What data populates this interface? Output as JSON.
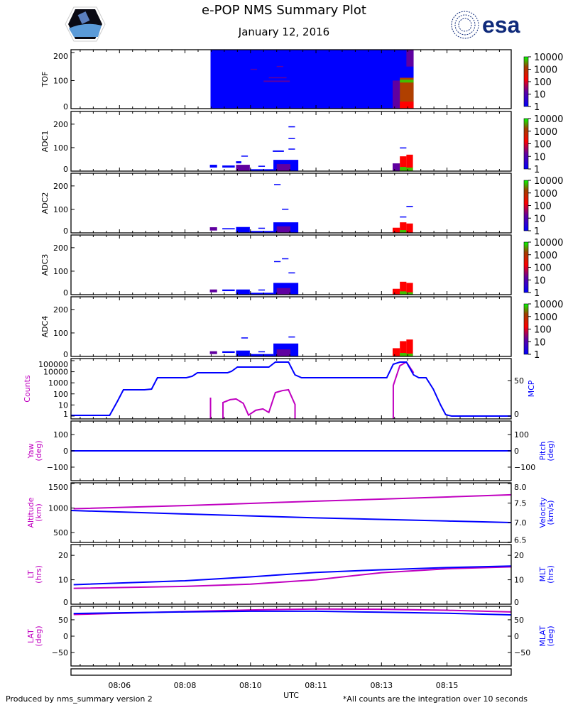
{
  "header": {
    "title": "e-POP NMS Summary Plot",
    "subtitle": "January 12, 2016",
    "left_logo": "CASSIOPE",
    "right_logo": "esa"
  },
  "footer": {
    "left": "Produced by nms_summary version 2",
    "right": "*All counts are the integration over 10 seconds"
  },
  "colors": {
    "magenta": "#c000c0",
    "blue": "#0000ff",
    "esa": "#0f2a7a"
  },
  "chart_data": {
    "type": "multi-panel",
    "title": "e-POP NMS Summary Plot",
    "xlabel": "UTC",
    "x_units": "seconds after 08:00:00",
    "xlim": [
      326,
      998
    ],
    "x_ticks": [
      {
        "t": 400,
        "label": "08:06"
      },
      {
        "t": 500,
        "label": "08:08"
      },
      {
        "t": 600,
        "label": "08:10"
      },
      {
        "t": 700,
        "label": "08:11"
      },
      {
        "t": 800,
        "label": "08:13"
      },
      {
        "t": 900,
        "label": "08:15"
      }
    ],
    "colorbar": {
      "labels": [
        "10000",
        "1000",
        "100",
        "10",
        "1"
      ]
    },
    "spectrograms": [
      {
        "name": "TOF",
        "ylim": [
          0,
          210
        ],
        "yticks": [
          "0",
          "100",
          "200"
        ],
        "ytick_values": [
          0,
          100,
          200
        ],
        "blocks": [
          [
            539,
            849,
            0,
            210,
            0
          ],
          [
            620,
            660,
            95,
            100,
            1
          ],
          [
            628,
            655,
            110,
            112,
            1
          ],
          [
            640,
            650,
            150,
            152,
            1
          ],
          [
            600,
            610,
            140,
            142,
            1
          ],
          [
            817,
            828,
            0,
            100,
            1
          ],
          [
            828,
            849,
            0,
            110,
            4
          ],
          [
            828,
            849,
            0,
            25,
            2
          ],
          [
            828,
            849,
            93,
            103,
            3
          ],
          [
            838,
            849,
            150,
            210,
            1
          ]
        ]
      },
      {
        "name": "ADC1",
        "ylim": [
          0,
          254
        ],
        "yticks": [
          "0",
          "100",
          "200"
        ],
        "ytick_values": [
          0,
          100,
          200
        ],
        "blocks": [
          [
            538,
            549,
            15,
            27,
            0
          ],
          [
            557,
            576,
            15,
            24,
            0
          ],
          [
            578,
            586,
            33,
            42,
            0
          ],
          [
            578,
            599,
            0,
            27,
            1
          ],
          [
            586,
            596,
            63,
            66,
            0
          ],
          [
            599,
            635,
            0,
            8,
            0
          ],
          [
            612,
            622,
            20,
            23,
            0
          ],
          [
            634,
            651,
            82,
            88,
            0
          ],
          [
            635,
            673,
            0,
            48,
            0
          ],
          [
            640,
            661,
            0,
            30,
            1
          ],
          [
            658,
            668,
            188,
            191,
            0
          ],
          [
            658,
            668,
            138,
            141,
            0
          ],
          [
            658,
            668,
            92,
            96,
            0
          ],
          [
            817,
            828,
            0,
            33,
            1
          ],
          [
            828,
            838,
            0,
            63,
            2
          ],
          [
            828,
            838,
            0,
            18,
            3
          ],
          [
            838,
            848,
            0,
            70,
            2
          ],
          [
            838,
            848,
            0,
            15,
            3
          ],
          [
            828,
            838,
            98,
            101,
            0
          ]
        ]
      },
      {
        "name": "ADC2",
        "ylim": [
          0,
          254
        ],
        "yticks": [
          "0",
          "100",
          "200"
        ],
        "ytick_values": [
          0,
          100,
          200
        ],
        "blocks": [
          [
            538,
            549,
            10,
            24,
            1
          ],
          [
            557,
            576,
            15,
            20,
            0
          ],
          [
            578,
            599,
            0,
            25,
            0
          ],
          [
            599,
            635,
            0,
            8,
            0
          ],
          [
            612,
            622,
            18,
            22,
            0
          ],
          [
            635,
            673,
            0,
            45,
            0
          ],
          [
            640,
            661,
            0,
            28,
            1
          ],
          [
            636,
            646,
            205,
            208,
            0
          ],
          [
            648,
            658,
            100,
            103,
            0
          ],
          [
            817,
            828,
            0,
            22,
            2
          ],
          [
            828,
            838,
            0,
            45,
            2
          ],
          [
            828,
            838,
            0,
            12,
            3
          ],
          [
            838,
            848,
            0,
            40,
            2
          ],
          [
            838,
            848,
            112,
            115,
            0
          ],
          [
            828,
            838,
            68,
            70,
            0
          ]
        ]
      },
      {
        "name": "ADC3",
        "ylim": [
          0,
          254
        ],
        "yticks": [
          "0",
          "100",
          "200"
        ],
        "ytick_values": [
          0,
          100,
          200
        ],
        "blocks": [
          [
            538,
            549,
            10,
            22,
            1
          ],
          [
            557,
            576,
            15,
            22,
            0
          ],
          [
            578,
            599,
            0,
            22,
            0
          ],
          [
            599,
            635,
            0,
            8,
            0
          ],
          [
            612,
            622,
            18,
            22,
            0
          ],
          [
            635,
            673,
            0,
            50,
            0
          ],
          [
            640,
            661,
            0,
            28,
            1
          ],
          [
            636,
            646,
            140,
            143,
            0
          ],
          [
            648,
            658,
            152,
            155,
            0
          ],
          [
            658,
            668,
            92,
            95,
            0
          ],
          [
            817,
            828,
            0,
            25,
            2
          ],
          [
            828,
            838,
            0,
            55,
            2
          ],
          [
            828,
            838,
            0,
            14,
            3
          ],
          [
            838,
            848,
            0,
            50,
            2
          ],
          [
            838,
            848,
            0,
            10,
            3
          ]
        ]
      },
      {
        "name": "ADC4",
        "ylim": [
          0,
          254
        ],
        "yticks": [
          "0",
          "100",
          "200"
        ],
        "ytick_values": [
          0,
          100,
          200
        ],
        "blocks": [
          [
            538,
            549,
            10,
            22,
            1
          ],
          [
            557,
            576,
            15,
            22,
            0
          ],
          [
            578,
            599,
            0,
            25,
            0
          ],
          [
            586,
            596,
            78,
            81,
            0
          ],
          [
            599,
            635,
            0,
            10,
            0
          ],
          [
            612,
            622,
            18,
            22,
            0
          ],
          [
            635,
            673,
            0,
            55,
            0
          ],
          [
            640,
            661,
            0,
            30,
            1
          ],
          [
            658,
            668,
            82,
            85,
            0
          ],
          [
            817,
            828,
            0,
            35,
            2
          ],
          [
            828,
            838,
            0,
            65,
            2
          ],
          [
            828,
            838,
            0,
            15,
            3
          ],
          [
            838,
            848,
            0,
            72,
            2
          ],
          [
            838,
            848,
            0,
            12,
            3
          ]
        ]
      }
    ],
    "counts_panel": {
      "left": {
        "name": "Counts",
        "scale": "log",
        "ylim": [
          0.55,
          155000
        ],
        "yticks": [
          "1",
          "10",
          "100",
          "1000",
          "10000",
          "100000"
        ],
        "ytick_values": [
          1,
          10,
          100,
          1000,
          10000,
          100000
        ],
        "segments": [
          [
            [
              539,
              46
            ],
            [
              539,
              0.4
            ]
          ],
          [
            [
              558,
              0.4
            ],
            [
              558,
              16.5
            ],
            [
              569,
              30
            ],
            [
              578,
              35
            ],
            [
              589,
              14
            ],
            [
              597,
              1.2
            ],
            [
              608,
              3.3
            ],
            [
              619,
              4.4
            ],
            [
              628,
              2.1
            ],
            [
              638,
              130
            ],
            [
              649,
              200
            ],
            [
              658,
              235
            ],
            [
              668,
              11
            ],
            [
              668,
              0.4
            ]
          ],
          [
            [
              818,
              0.4
            ],
            [
              818,
              570
            ],
            [
              828,
              35000
            ],
            [
              838,
              75000
            ],
            [
              849,
              8000
            ]
          ]
        ]
      },
      "right": {
        "name": "MCP",
        "scale": "linear",
        "ylim": [
          -4,
          81
        ],
        "yticks": [
          "0",
          "50"
        ],
        "ytick_values": [
          0,
          50
        ],
        "t": [
          326,
          385,
          397,
          406,
          438,
          449,
          458,
          502,
          511,
          519,
          565,
          571,
          580,
          628,
          638,
          658,
          668,
          678,
          808,
          818,
          828,
          838,
          849,
          857,
          868,
          879,
          890,
          898,
          907,
          998
        ],
        "values": [
          1,
          1,
          21,
          37,
          37,
          38,
          54,
          54,
          56,
          61,
          61,
          63,
          69,
          69,
          76,
          76,
          58,
          54,
          54,
          73,
          76,
          76,
          58,
          54,
          54,
          38,
          16,
          2,
          0,
          0
        ]
      }
    },
    "line_panels": [
      {
        "left": {
          "name": "Yaw",
          "unit": "(deg)",
          "ylim": [
            -183,
            183
          ],
          "yticks": [
            "−100",
            "0",
            "100"
          ],
          "ytick_values": [
            -100,
            0,
            100
          ],
          "t": [
            326,
            998
          ],
          "values": [
            0,
            0
          ]
        },
        "right": {
          "name": "Pitch",
          "unit": "(deg)",
          "ylim": [
            -183,
            183
          ],
          "yticks": [
            "−100",
            "0",
            "100"
          ],
          "ytick_values": [
            -100,
            0,
            100
          ],
          "t": [
            326,
            998
          ],
          "values": [
            0,
            0
          ]
        }
      },
      {
        "left": {
          "name": "Altitude",
          "unit": "(km)",
          "ylim": [
            300,
            1514
          ],
          "yticks": [
            "500",
            "1000",
            "1500"
          ],
          "ytick_values": [
            500,
            1000,
            1500
          ],
          "t": [
            330,
            500,
            700,
            900,
            998
          ],
          "values": [
            986,
            1050,
            1140,
            1225,
            1271
          ]
        },
        "right": {
          "name": "Velocity",
          "unit": "(km/s)",
          "ylim": [
            6.49,
            8.02
          ],
          "yticks": [
            "6.5",
            "7.0",
            "7.5",
            "8.0"
          ],
          "ytick_values": [
            6.5,
            7.0,
            7.5,
            8.0
          ],
          "t": [
            326,
            500,
            700,
            900,
            998
          ],
          "values": [
            7.31,
            7.22,
            7.12,
            7.04,
            7.0
          ]
        }
      },
      {
        "left": {
          "name": "LT",
          "unit": "(hrs)",
          "ylim": [
            0,
            24.4
          ],
          "yticks": [
            "0",
            "10",
            "20"
          ],
          "ytick_values": [
            0,
            10,
            20
          ],
          "t": [
            330,
            500,
            600,
            700,
            800,
            900,
            998
          ],
          "values": [
            6.5,
            7.3,
            8.2,
            10.0,
            12.9,
            14.5,
            15.3
          ]
        },
        "right": {
          "name": "MLT",
          "unit": "(hrs)",
          "ylim": [
            0,
            24.4
          ],
          "yticks": [
            "0",
            "10",
            "20"
          ],
          "ytick_values": [
            0,
            10,
            20
          ],
          "t": [
            330,
            500,
            600,
            700,
            800,
            900,
            998
          ],
          "values": [
            8.0,
            9.6,
            11.2,
            13.0,
            14.1,
            15.0,
            15.6
          ]
        }
      },
      {
        "left": {
          "name": "LAT",
          "unit": "(deg)",
          "ylim": [
            -91,
            91
          ],
          "yticks": [
            "−50",
            "0",
            "50"
          ],
          "ytick_values": [
            -50,
            0,
            50
          ],
          "t": [
            330,
            500,
            600,
            700,
            800,
            900,
            998
          ],
          "values": [
            66,
            75,
            80,
            83,
            82,
            79,
            74
          ]
        },
        "right": {
          "name": "MLAT",
          "unit": "(deg)",
          "ylim": [
            -91,
            91
          ],
          "yticks": [
            "−50",
            "0",
            "50"
          ],
          "ytick_values": [
            -50,
            0,
            50
          ],
          "t": [
            330,
            500,
            600,
            700,
            800,
            900,
            998
          ],
          "values": [
            69,
            74,
            76,
            76,
            73,
            70,
            65
          ]
        }
      }
    ]
  }
}
